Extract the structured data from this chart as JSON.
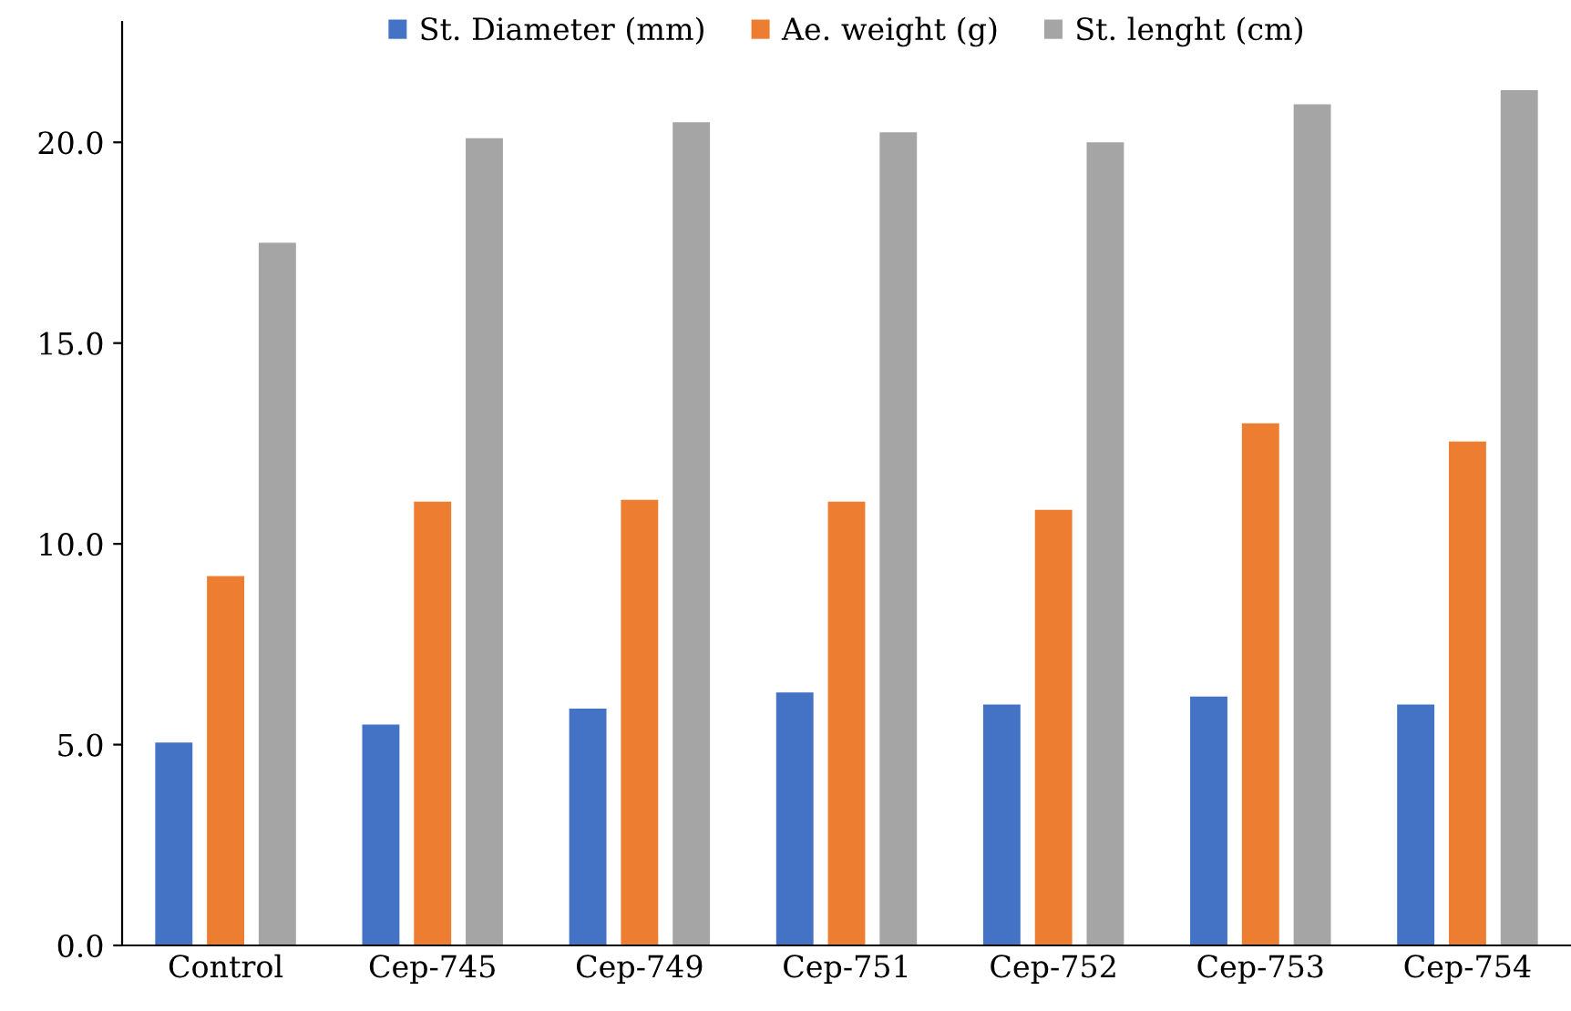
{
  "chart_data": {
    "type": "bar",
    "categories": [
      "Control",
      "Cep-745",
      "Cep-749",
      "Cep-751",
      "Cep-752",
      "Cep-753",
      "Cep-754"
    ],
    "series": [
      {
        "name": "St. Diameter (mm)",
        "color": "#4472c4",
        "values": [
          5.05,
          5.5,
          5.9,
          6.3,
          6.0,
          6.2,
          6.0
        ]
      },
      {
        "name": "Ae. weight (g)",
        "color": "#ed7d31",
        "values": [
          9.2,
          11.05,
          11.1,
          11.05,
          10.85,
          13.0,
          12.55
        ]
      },
      {
        "name": "St. lenght (cm)",
        "color": "#a5a5a5",
        "values": [
          17.5,
          20.1,
          20.5,
          20.25,
          20.0,
          20.95,
          21.3
        ]
      }
    ],
    "ylim": [
      0,
      23
    ],
    "yticks": [
      {
        "value": 0,
        "label": "0.0"
      },
      {
        "value": 5,
        "label": "5.0"
      },
      {
        "value": 10,
        "label": "10.0"
      },
      {
        "value": 15,
        "label": "15.0"
      },
      {
        "value": 20,
        "label": "20.0"
      }
    ],
    "grid": false,
    "legend": "top"
  }
}
